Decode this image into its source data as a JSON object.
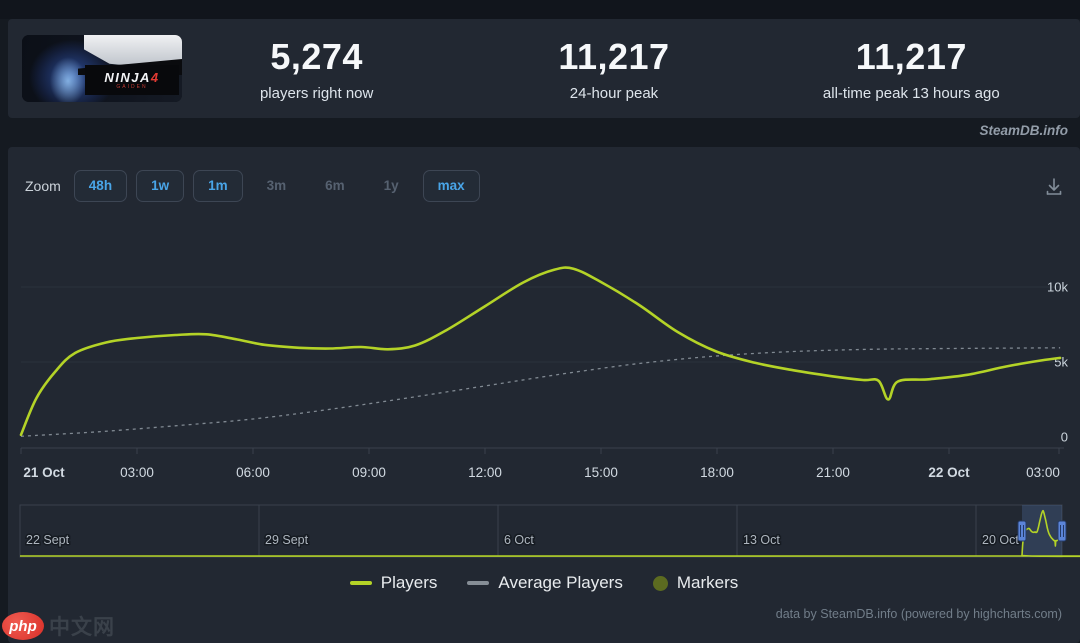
{
  "page": {
    "steamdb_watermark": "SteamDB.info",
    "footer": "data by SteamDB.info (powered by highcharts.com)",
    "site_badge": {
      "logo": "php",
      "text": "中文网"
    }
  },
  "header": {
    "capsule": {
      "logo_text": "NINJA",
      "logo_accent": "4",
      "logo_sub": "GAIDEN"
    },
    "stats": [
      {
        "value": "5,274",
        "caption": "players right now"
      },
      {
        "value": "11,217",
        "caption": "24-hour peak"
      },
      {
        "value": "11,217",
        "caption": "all-time peak 13 hours ago"
      }
    ]
  },
  "toolbar": {
    "zoom_label": "Zoom",
    "buttons": [
      {
        "label": "48h",
        "state": "enabled"
      },
      {
        "label": "1w",
        "state": "enabled"
      },
      {
        "label": "1m",
        "state": "enabled"
      },
      {
        "label": "3m",
        "state": "disabled"
      },
      {
        "label": "6m",
        "state": "disabled"
      },
      {
        "label": "1y",
        "state": "disabled"
      },
      {
        "label": "max",
        "state": "enabled"
      }
    ]
  },
  "chart_data": {
    "type": "line",
    "title": "",
    "xlabel": "",
    "ylabel": "",
    "grid": true,
    "legend_position": "bottom-center",
    "x_labels": [
      {
        "text": "21 Oct",
        "bold": true
      },
      {
        "text": "03:00"
      },
      {
        "text": "06:00"
      },
      {
        "text": "09:00"
      },
      {
        "text": "12:00"
      },
      {
        "text": "15:00"
      },
      {
        "text": "18:00"
      },
      {
        "text": "21:00"
      },
      {
        "text": "22 Oct",
        "bold": true
      },
      {
        "text": "03:00"
      }
    ],
    "y_ticks": [
      {
        "label": "0",
        "value": 0
      },
      {
        "label": "5k",
        "value": 5000
      },
      {
        "label": "10k",
        "value": 10000
      }
    ],
    "y_peak_visible": 11217,
    "series": [
      {
        "name": "Players",
        "type": "line",
        "color": "#b4d327",
        "dashed": false,
        "points_hours_players": [
          [
            0,
            150
          ],
          [
            0.4,
            2600
          ],
          [
            0.9,
            4400
          ],
          [
            1.4,
            5600
          ],
          [
            2.2,
            6300
          ],
          [
            3,
            6600
          ],
          [
            4,
            6800
          ],
          [
            4.8,
            6850
          ],
          [
            5.6,
            6500
          ],
          [
            6.3,
            6150
          ],
          [
            7.2,
            5950
          ],
          [
            8,
            5900
          ],
          [
            8.8,
            6000
          ],
          [
            9.5,
            5850
          ],
          [
            10.2,
            6100
          ],
          [
            11,
            7100
          ],
          [
            12,
            8700
          ],
          [
            13,
            10300
          ],
          [
            13.8,
            11150
          ],
          [
            14.3,
            11217
          ],
          [
            15,
            10350
          ],
          [
            16,
            8800
          ],
          [
            17,
            7000
          ],
          [
            18,
            5700
          ],
          [
            19,
            4950
          ],
          [
            20,
            4450
          ],
          [
            21,
            4050
          ],
          [
            21.8,
            3800
          ],
          [
            22.2,
            3750
          ],
          [
            22.45,
            2500
          ],
          [
            22.7,
            3700
          ],
          [
            23.5,
            3850
          ],
          [
            24.5,
            4150
          ],
          [
            25.5,
            4700
          ],
          [
            26.4,
            5100
          ],
          [
            26.9,
            5274
          ]
        ]
      },
      {
        "name": "Average Players",
        "type": "line",
        "color": "#8b939c",
        "dashed": true,
        "points_hours_players": [
          [
            0,
            50
          ],
          [
            2,
            350
          ],
          [
            4,
            750
          ],
          [
            6,
            1200
          ],
          [
            8,
            1850
          ],
          [
            10,
            2600
          ],
          [
            12,
            3400
          ],
          [
            14,
            4200
          ],
          [
            16,
            4900
          ],
          [
            18,
            5400
          ],
          [
            20,
            5700
          ],
          [
            22,
            5850
          ],
          [
            24,
            5900
          ],
          [
            26.9,
            5950
          ]
        ]
      },
      {
        "name": "Markers",
        "type": "marker",
        "color": "#5c6b20",
        "points_hours_players": []
      }
    ],
    "navigator": {
      "labels": [
        "22 Sept",
        "29 Sept",
        "6 Oct",
        "13 Oct",
        "20 Oct"
      ],
      "selection": "rightmost ~48h window selected"
    }
  },
  "legend": [
    {
      "label": "Players",
      "swatch": "line",
      "color": "#b4d327"
    },
    {
      "label": "Average Players",
      "swatch": "line",
      "color": "#868e96"
    },
    {
      "label": "Markers",
      "swatch": "circle",
      "color": "#5c6b20"
    }
  ]
}
